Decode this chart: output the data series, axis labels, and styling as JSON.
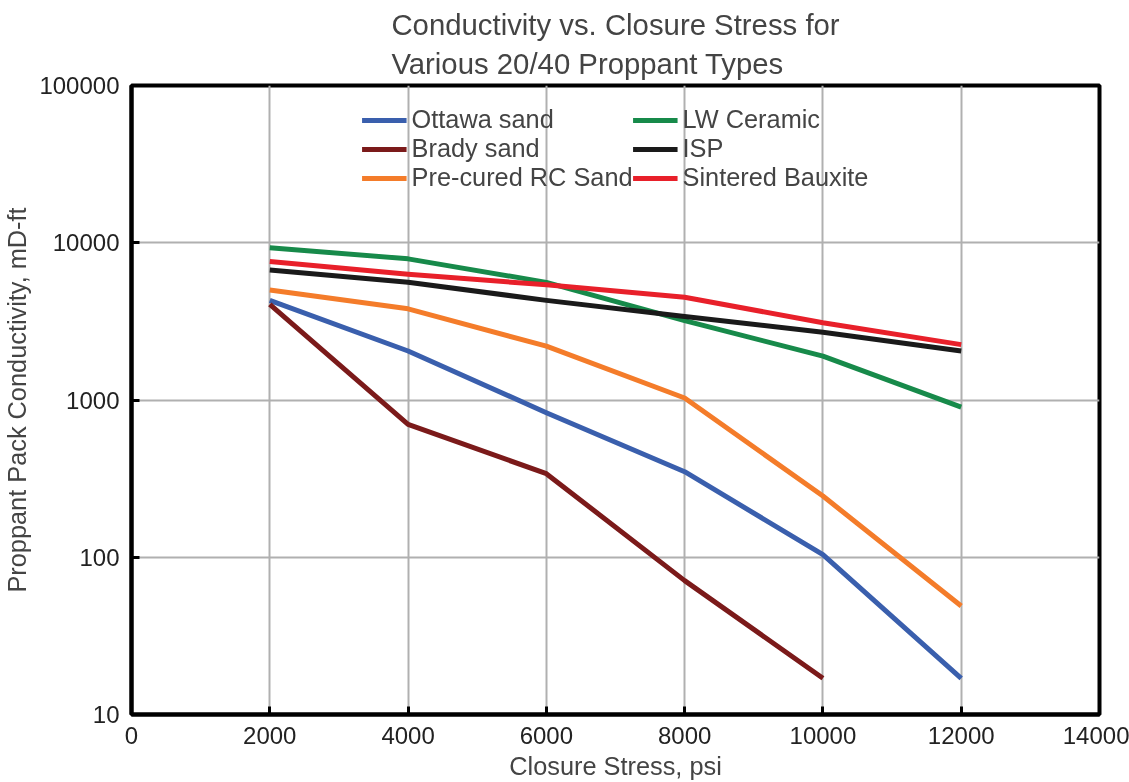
{
  "chart_data": {
    "type": "line",
    "title": "Conductivity vs. Closure Stress for\nVarious 20/40 Proppant Types",
    "xlabel": "Closure Stress, psi",
    "ylabel": "Proppant Pack Conductivity, mD-ft",
    "x": [
      2000,
      4000,
      6000,
      8000,
      10000,
      12000
    ],
    "series": [
      {
        "name": "Ottawa sand",
        "color": "#3a5fad",
        "values": [
          4300,
          2050,
          830,
          350,
          104,
          17
        ]
      },
      {
        "name": "Brady sand",
        "color": "#7b1a1a",
        "values": [
          4050,
          700,
          340,
          71,
          17,
          null
        ]
      },
      {
        "name": "Pre-cured RC Sand",
        "color": "#f47c2a",
        "values": [
          5000,
          3800,
          2200,
          1030,
          245,
          49
        ]
      },
      {
        "name": "LW Ceramic",
        "color": "#178a4a",
        "values": [
          9300,
          7900,
          5600,
          3200,
          1900,
          900
        ]
      },
      {
        "name": "ISP",
        "color": "#1a1a1a",
        "values": [
          6700,
          5600,
          4300,
          3400,
          2700,
          2050
        ]
      },
      {
        "name": "Sintered Bauxite",
        "color": "#e8202a",
        "values": [
          7600,
          6300,
          5400,
          4500,
          3100,
          2250
        ]
      }
    ],
    "xlim": [
      0,
      14000
    ],
    "xticks": [
      0,
      2000,
      4000,
      6000,
      8000,
      10000,
      12000,
      14000
    ],
    "ylim": [
      10,
      100000
    ],
    "yticks": [
      10,
      100,
      1000,
      10000,
      100000
    ],
    "log": "y",
    "grid": true,
    "legend": "top",
    "marker": "none",
    "line_style": "solid"
  }
}
